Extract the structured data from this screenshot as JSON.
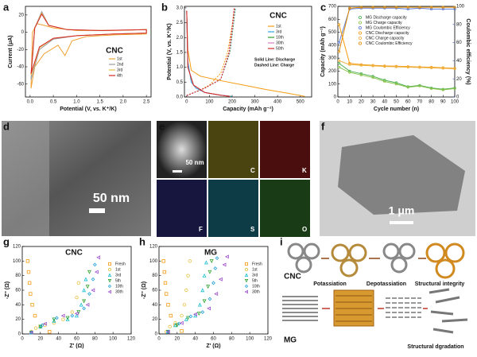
{
  "panel_labels": [
    "a",
    "b",
    "c",
    "d",
    "e",
    "f",
    "g",
    "h",
    "i"
  ],
  "chart_data": [
    {
      "type": "line",
      "annotation": "CNC",
      "x_label": "Potential (V, vs. K⁺/K)",
      "y_label": "Current (μA)",
      "xlim": [
        -0.1,
        2.6
      ],
      "xticks": [
        {
          "value": 0,
          "label": "0.0"
        },
        0.5,
        {
          "value": 1,
          "label": "1.0"
        },
        1.5,
        {
          "value": 2,
          "label": "2.0"
        },
        2.5
      ],
      "ylim": [
        -75,
        30
      ],
      "yticks": [
        20,
        0,
        -20,
        -40,
        -60
      ],
      "series": [
        {
          "name": "1st",
          "color": "#f0a030",
          "x": [
            0.02,
            0.1,
            0.3,
            0.6,
            0.75,
            0.9,
            1.2,
            1.8,
            2.5,
            2.5,
            1.8,
            1,
            0.5,
            0.3,
            0.15,
            0.05,
            0.02
          ],
          "values": [
            -65,
            -40,
            -25,
            -15,
            -27,
            -10,
            -5,
            -3,
            -2,
            3,
            2,
            2,
            5,
            8,
            10,
            0,
            -65
          ]
        },
        {
          "name": "2nd",
          "color": "#999999",
          "x": [
            0.02,
            0.2,
            0.5,
            1,
            1.8,
            2.5,
            2.5,
            1.5,
            0.8,
            0.4,
            0.25,
            0.1,
            0.02
          ],
          "values": [
            -55,
            -20,
            -8,
            -4,
            -2,
            -1,
            3,
            2,
            3,
            8,
            24,
            5,
            -55
          ]
        },
        {
          "name": "3rd",
          "color": "#e8c040",
          "x": [
            0.02,
            0.2,
            0.5,
            1,
            1.8,
            2.5,
            2.5,
            1.5,
            0.8,
            0.4,
            0.25,
            0.1,
            0.02
          ],
          "values": [
            -50,
            -18,
            -7,
            -4,
            -2,
            -1,
            3,
            2,
            3,
            8,
            22,
            5,
            -50
          ]
        },
        {
          "name": "4th",
          "color": "#d62728",
          "x": [
            0.02,
            0.2,
            0.5,
            1,
            1.8,
            2.5,
            2.5,
            1.5,
            0.8,
            0.4,
            0.25,
            0.1,
            0.02
          ],
          "values": [
            -48,
            -17,
            -7,
            -4,
            -2,
            -1,
            3,
            2,
            3,
            8,
            21,
            5,
            -48
          ]
        }
      ]
    },
    {
      "type": "line",
      "annotation": "CNC",
      "annotations": [
        "Solid Line: Discharge",
        "Dashed Line: Charge"
      ],
      "x_label": "Capacity (mAh g⁻¹)",
      "y_label": "Potential (V, vs. K⁺/K)",
      "xlim": [
        -10,
        550
      ],
      "xticks": [
        0,
        100,
        200,
        300,
        400,
        500
      ],
      "ylim": [
        0,
        3.05
      ],
      "yticks": [
        {
          "value": 0,
          "label": "0.0"
        },
        0.5,
        {
          "value": 1,
          "label": "1.0"
        },
        1.5,
        {
          "value": 2,
          "label": "2.0"
        },
        2.5,
        {
          "value": 3,
          "label": "3.0"
        }
      ],
      "series": [
        {
          "name": "1st",
          "color": "#f39c12",
          "discharge": {
            "x": [
              0,
              5,
              20,
              60,
              150,
              250,
              350,
              450,
              520
            ],
            "values": [
              2.9,
              1.6,
              0.9,
              0.7,
              0.55,
              0.4,
              0.25,
              0.12,
              0.02
            ]
          },
          "charge": {
            "x": [
              0,
              50,
              100,
              150,
              180,
              200,
              210
            ],
            "values": [
              0.05,
              0.2,
              0.4,
              0.8,
              1.5,
              2.4,
              3
            ]
          }
        },
        {
          "name": "3rd",
          "color": "#29a8e0",
          "discharge": {
            "x": [
              0,
              5,
              20,
              40,
              80,
              150,
              200
            ],
            "values": [
              2.9,
              1.2,
              0.5,
              0.3,
              0.15,
              0.06,
              0.02
            ]
          },
          "charge": {
            "x": [
              0,
              80,
              150,
              190,
              205,
              215
            ],
            "values": [
              0.05,
              0.3,
              0.6,
              1.5,
              2.4,
              3
            ]
          }
        },
        {
          "name": "10th",
          "color": "#2ca02c",
          "discharge": {
            "x": [
              0,
              5,
              30,
              80,
              150,
              195
            ],
            "values": [
              2.9,
              1,
              0.4,
              0.15,
              0.06,
              0.02
            ]
          },
          "charge": {
            "x": [
              0,
              80,
              150,
              190,
              205,
              213
            ],
            "values": [
              0.05,
              0.3,
              0.6,
              1.5,
              2.4,
              3
            ]
          }
        },
        {
          "name": "30th",
          "color": "#e377c2",
          "discharge": {
            "x": [
              0,
              5,
              30,
              80,
              150,
              192
            ],
            "values": [
              2.9,
              1,
              0.4,
              0.15,
              0.06,
              0.02
            ]
          },
          "charge": {
            "x": [
              0,
              80,
              150,
              188,
              203,
              211
            ],
            "values": [
              0.05,
              0.3,
              0.6,
              1.5,
              2.4,
              3
            ]
          }
        },
        {
          "name": "50th",
          "color": "#d62728",
          "discharge": {
            "x": [
              0,
              5,
              30,
              80,
              150,
              190
            ],
            "values": [
              2.9,
              1,
              0.4,
              0.15,
              0.06,
              0.02
            ]
          },
          "charge": {
            "x": [
              0,
              80,
              150,
              186,
              201,
              209
            ],
            "values": [
              0.05,
              0.3,
              0.6,
              1.5,
              2.4,
              3
            ]
          }
        }
      ]
    },
    {
      "type": "line",
      "x_label": "Cycle number (n)",
      "y_label": "Capacity (mAh g⁻¹)",
      "y2_label": "Coulombic efficiency (%)",
      "xlim": [
        0,
        100
      ],
      "xticks": [
        0,
        10,
        20,
        30,
        40,
        50,
        60,
        70,
        80,
        90,
        100
      ],
      "ylim": [
        0,
        700
      ],
      "yticks": [
        0,
        100,
        200,
        300,
        400,
        500,
        600,
        700
      ],
      "y2lim": [
        0,
        100
      ],
      "y2ticks": [
        0,
        20,
        40,
        60,
        80,
        100
      ],
      "x": [
        1,
        10,
        20,
        30,
        40,
        50,
        60,
        70,
        80,
        90,
        100
      ],
      "series": [
        {
          "name": "MG Discharge capacity",
          "color": "#4caf50",
          "values": [
            260,
            200,
            180,
            160,
            130,
            110,
            80,
            90,
            70,
            60,
            70
          ]
        },
        {
          "name": "MG Charge capacity",
          "color": "#8bc34a",
          "values": [
            230,
            190,
            170,
            150,
            120,
            100,
            75,
            85,
            65,
            55,
            65
          ]
        },
        {
          "name": "MG Coulombic Efficiency",
          "color": "#5b7bd5",
          "axis": "y2",
          "values": [
            60,
            97,
            98,
            98,
            98,
            98,
            97,
            98,
            97,
            97,
            97
          ]
        },
        {
          "name": "CNC Discharge capacity",
          "color": "#f39c12",
          "values": [
            560,
            260,
            250,
            245,
            240,
            238,
            235,
            232,
            230,
            226,
            222
          ]
        },
        {
          "name": "CNC Charge capacity",
          "color": "#f0b040",
          "values": [
            280,
            250,
            245,
            240,
            236,
            233,
            230,
            228,
            225,
            222,
            218
          ]
        },
        {
          "name": "CNC Coulombic Efficiency",
          "color": "#e08a00",
          "axis": "y2",
          "values": [
            50,
            98,
            99,
            99,
            99,
            99,
            99,
            99,
            99,
            99,
            99
          ]
        }
      ]
    },
    {
      "type": "scatter",
      "annotation": "CNC",
      "x_label": "Z' (Ω)",
      "y_label": "-Z'' (Ω)",
      "xlim": [
        0,
        120
      ],
      "xticks": [
        0,
        20,
        40,
        60,
        80,
        100,
        120
      ],
      "ylim": [
        0,
        120
      ],
      "yticks": [
        0,
        20,
        40,
        60,
        80,
        100,
        120
      ],
      "series": [
        {
          "name": "Fresh",
          "color": "#f39c12",
          "x": [
            6,
            7,
            8,
            9,
            11,
            14,
            20,
            30
          ],
          "values": [
            100,
            85,
            70,
            55,
            40,
            25,
            10,
            3
          ]
        },
        {
          "name": "1st",
          "color": "#e8c040",
          "x": [
            10,
            15,
            25,
            35,
            45,
            55,
            60,
            62
          ],
          "values": [
            3,
            8,
            12,
            15,
            20,
            30,
            50,
            70
          ]
        },
        {
          "name": "3rd",
          "color": "#17becf",
          "x": [
            10,
            20,
            35,
            50,
            60,
            65,
            68,
            70
          ],
          "values": [
            2,
            10,
            18,
            20,
            25,
            40,
            60,
            75
          ]
        },
        {
          "name": "5th",
          "color": "#2ca02c",
          "x": [
            10,
            20,
            35,
            50,
            62,
            68,
            72,
            74
          ],
          "values": [
            2,
            10,
            20,
            22,
            30,
            45,
            65,
            85
          ]
        },
        {
          "name": "10th",
          "color": "#1f9fd8",
          "x": [
            10,
            22,
            38,
            55,
            68,
            74,
            78,
            80
          ],
          "values": [
            2,
            12,
            22,
            25,
            35,
            55,
            75,
            95
          ]
        },
        {
          "name": "30th",
          "color": "#9b4dca",
          "x": [
            10,
            25,
            45,
            60,
            72,
            78,
            82,
            84
          ],
          "values": [
            2,
            14,
            25,
            28,
            40,
            60,
            85,
            105
          ]
        }
      ]
    },
    {
      "type": "scatter",
      "annotation": "MG",
      "x_label": "Z' (Ω)",
      "y_label": "-Z'' (Ω)",
      "xlim": [
        0,
        120
      ],
      "xticks": [
        0,
        20,
        40,
        60,
        80,
        100,
        120
      ],
      "ylim": [
        0,
        120
      ],
      "yticks": [
        0,
        20,
        40,
        60,
        80,
        100,
        120
      ],
      "series": [
        {
          "name": "Fresh",
          "color": "#f39c12",
          "x": [
            5,
            6,
            7,
            8,
            10,
            13,
            18,
            25
          ],
          "values": [
            100,
            85,
            70,
            55,
            40,
            25,
            12,
            4
          ]
        },
        {
          "name": "1st",
          "color": "#e8c040",
          "x": [
            8,
            12,
            18,
            25,
            28,
            30,
            32,
            34
          ],
          "values": [
            3,
            10,
            15,
            25,
            40,
            60,
            80,
            100
          ]
        },
        {
          "name": "3rd",
          "color": "#17becf",
          "x": [
            10,
            18,
            30,
            40,
            45,
            48,
            50,
            52
          ],
          "values": [
            3,
            12,
            20,
            25,
            40,
            60,
            80,
            98
          ]
        },
        {
          "name": "5th",
          "color": "#2ca02c",
          "x": [
            10,
            20,
            32,
            44,
            50,
            54,
            56,
            58
          ],
          "values": [
            3,
            12,
            22,
            28,
            45,
            65,
            85,
            100
          ]
        },
        {
          "name": "10th",
          "color": "#1f9fd8",
          "x": [
            10,
            22,
            35,
            48,
            56,
            60,
            62,
            64
          ],
          "values": [
            3,
            14,
            24,
            30,
            48,
            70,
            90,
            104
          ]
        },
        {
          "name": "30th",
          "color": "#9b4dca",
          "x": [
            10,
            25,
            40,
            55,
            63,
            68,
            72,
            75
          ],
          "values": [
            3,
            15,
            27,
            35,
            55,
            75,
            95,
            106
          ]
        }
      ]
    }
  ],
  "images": {
    "d": {
      "scale_bar": "50 nm"
    },
    "e": {
      "scale_bar": "50 nm",
      "maps": [
        "C",
        "K",
        "F",
        "S",
        "O"
      ]
    },
    "f": {
      "scale_bar": "1 μm"
    }
  },
  "diagram": {
    "cnc_label": "CNC",
    "mg_label": "MG",
    "steps": [
      "Potassiation",
      "Depotassiation",
      "Structural integrity"
    ],
    "mg_result": "Structural dgradation"
  }
}
